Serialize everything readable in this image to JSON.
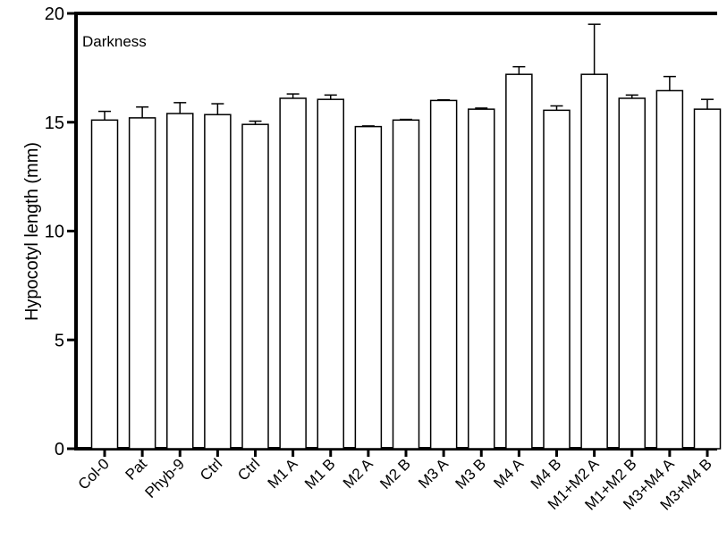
{
  "chart_data": {
    "type": "bar",
    "annotation": "Darkness",
    "ylabel": "Hypocotyl length (mm)",
    "xlabel": "",
    "ylim": [
      0,
      20
    ],
    "yticks": [
      "0",
      "5",
      "10",
      "15",
      "20"
    ],
    "grid": false,
    "categories": [
      "Col-0",
      "Pat",
      "Phyb-9",
      "Ctrl",
      "Ctrl",
      "M1 A",
      "M1 B",
      "M2 A",
      "M2 B",
      "M3 A",
      "M3 B",
      "M4 A",
      "M4 B",
      "M1+M2 A",
      "M1+M2 B",
      "M3+M4 A",
      "M3+M4 B"
    ],
    "values": [
      15.1,
      15.2,
      15.4,
      15.35,
      14.9,
      16.1,
      16.05,
      14.8,
      15.1,
      16.0,
      15.6,
      17.2,
      15.55,
      17.2,
      16.1,
      16.45,
      15.6
    ],
    "errors": [
      0.4,
      0.5,
      0.5,
      0.5,
      0.15,
      0.2,
      0.2,
      0.03,
      0.03,
      0.03,
      0.05,
      0.35,
      0.2,
      2.3,
      0.15,
      0.65,
      0.45
    ],
    "colors": {
      "bar_fill": "#ffffff",
      "bar_stroke": "#000000",
      "axis": "#000000"
    }
  }
}
